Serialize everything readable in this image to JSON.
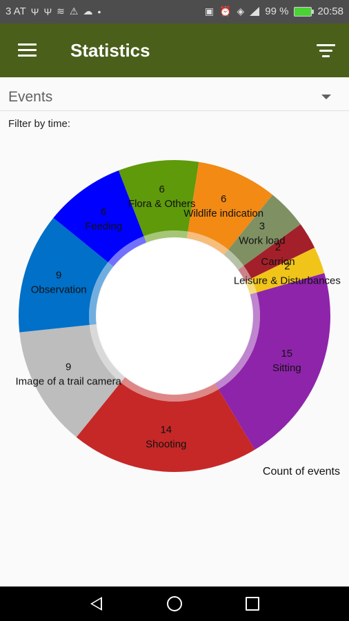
{
  "status_bar": {
    "carrier": "3 AT",
    "battery": "99 %",
    "time": "20:58"
  },
  "app_bar": {
    "title": "Statistics"
  },
  "selector": {
    "value": "Events"
  },
  "filter_label": "Filter by time:",
  "chart_data": {
    "type": "pie",
    "donut": true,
    "title": "",
    "description": "Count of events",
    "slices": [
      {
        "label": "Sitting",
        "value": 15,
        "color": "#8e24aa"
      },
      {
        "label": "Shooting",
        "value": 14,
        "color": "#c62828"
      },
      {
        "label": "Image of a trail camera",
        "value": 9,
        "color": "#bdbdbd"
      },
      {
        "label": "Observation",
        "value": 9,
        "color": "#0070c8"
      },
      {
        "label": "Feeding",
        "value": 6,
        "color": "#0000ff"
      },
      {
        "label": "Flora & Others",
        "value": 6,
        "color": "#5e9a0a"
      },
      {
        "label": "Wildlife indication",
        "value": 6,
        "color": "#f28a14"
      },
      {
        "label": "Work load",
        "value": 3,
        "color": "#7f9163"
      },
      {
        "label": "Carrion",
        "value": 2,
        "color": "#a3202a"
      },
      {
        "label": "Leisure & Disturbances",
        "value": 2,
        "color": "#f0c419"
      }
    ]
  }
}
